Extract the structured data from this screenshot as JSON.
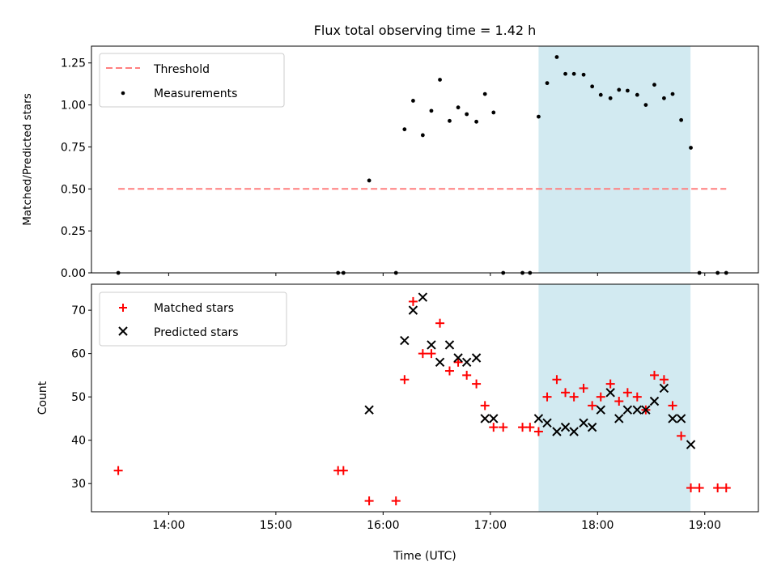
{
  "chart_data": [
    {
      "type": "scatter",
      "title": "Flux total observing time = 1.42 h",
      "xlabel": "",
      "ylabel": "Matched/Predicted stars",
      "xlim": [
        13.28,
        19.5
      ],
      "ylim": [
        0,
        1.35
      ],
      "yticks": [
        0.0,
        0.25,
        0.5,
        0.75,
        1.0,
        1.25
      ],
      "ytick_labels": [
        "0.00",
        "0.25",
        "0.50",
        "0.75",
        "1.00",
        "1.25"
      ],
      "shaded_region": {
        "x0": 17.45,
        "x1": 18.867,
        "color": "#add8e6"
      },
      "threshold": {
        "name": "Threshold",
        "value": 0.5,
        "x_start": 13.53,
        "x_end": 19.2,
        "color": "#ff7f7f"
      },
      "measurements": {
        "name": "Measurements",
        "x": [
          13.53,
          15.58,
          15.63,
          15.87,
          16.12,
          16.2,
          16.28,
          16.37,
          16.45,
          16.53,
          16.62,
          16.7,
          16.78,
          16.87,
          16.95,
          17.03,
          17.12,
          17.3,
          17.37,
          17.45,
          17.53,
          17.62,
          17.7,
          17.78,
          17.87,
          17.95,
          18.03,
          18.12,
          18.2,
          18.28,
          18.37,
          18.45,
          18.53,
          18.62,
          18.7,
          18.78,
          18.87,
          18.95,
          19.12,
          19.2
        ],
        "y": [
          0,
          0,
          0,
          0.55,
          0,
          0.855,
          1.025,
          0.82,
          0.965,
          1.15,
          0.905,
          0.985,
          0.945,
          0.9,
          1.065,
          0.955,
          0,
          0,
          0,
          0.93,
          1.13,
          1.285,
          1.185,
          1.185,
          1.18,
          1.11,
          1.06,
          1.04,
          1.09,
          1.085,
          1.06,
          1.0,
          1.12,
          1.04,
          1.065,
          0.91,
          0.745,
          0,
          0,
          0
        ]
      },
      "legend": {
        "location": "upper left",
        "entries": [
          "Threshold",
          "Measurements"
        ]
      }
    },
    {
      "type": "scatter",
      "title": "",
      "xlabel": "Time (UTC)",
      "ylabel": "Count",
      "xlim": [
        13.28,
        19.5
      ],
      "ylim": [
        23.5,
        76
      ],
      "yticks": [
        30,
        40,
        50,
        60,
        70
      ],
      "ytick_labels": [
        "30",
        "40",
        "50",
        "60",
        "70"
      ],
      "xticks": [
        14,
        15,
        16,
        17,
        18,
        19
      ],
      "xtick_labels": [
        "14:00",
        "15:00",
        "16:00",
        "17:00",
        "18:00",
        "19:00"
      ],
      "shaded_region": {
        "x0": 17.45,
        "x1": 18.867,
        "color": "#add8e6"
      },
      "series": [
        {
          "name": "Matched stars",
          "marker": "+",
          "color": "#ff0000",
          "x": [
            13.53,
            15.58,
            15.63,
            15.87,
            16.12,
            16.2,
            16.28,
            16.37,
            16.45,
            16.53,
            16.62,
            16.7,
            16.78,
            16.87,
            16.95,
            17.03,
            17.12,
            17.3,
            17.37,
            17.45,
            17.53,
            17.62,
            17.7,
            17.78,
            17.87,
            17.95,
            18.03,
            18.12,
            18.2,
            18.28,
            18.37,
            18.45,
            18.53,
            18.62,
            18.7,
            18.78,
            18.87,
            18.95,
            19.12,
            19.2
          ],
          "y": [
            33,
            33,
            33,
            26,
            26,
            54,
            72,
            60,
            60,
            67,
            56,
            58,
            55,
            53,
            48,
            43,
            43,
            43,
            43,
            42,
            50,
            54,
            51,
            50,
            52,
            48,
            50,
            53,
            49,
            51,
            50,
            47,
            55,
            54,
            48,
            41,
            29,
            29,
            29,
            29
          ]
        },
        {
          "name": "Predicted stars",
          "marker": "x",
          "color": "#000000",
          "x": [
            15.87,
            16.2,
            16.28,
            16.37,
            16.45,
            16.53,
            16.62,
            16.7,
            16.78,
            16.87,
            16.95,
            17.03,
            17.45,
            17.53,
            17.62,
            17.7,
            17.78,
            17.87,
            17.95,
            18.03,
            18.12,
            18.2,
            18.28,
            18.37,
            18.45,
            18.53,
            18.62,
            18.7,
            18.78,
            18.87
          ],
          "y": [
            47,
            63,
            70,
            73,
            62,
            58,
            62,
            59,
            58,
            59,
            45,
            45,
            45,
            44,
            42,
            43,
            42,
            44,
            43,
            47,
            51,
            45,
            47,
            47,
            47,
            49,
            52,
            45,
            45,
            39
          ]
        }
      ],
      "legend": {
        "location": "upper left",
        "entries": [
          "Matched stars",
          "Predicted stars"
        ]
      }
    }
  ]
}
